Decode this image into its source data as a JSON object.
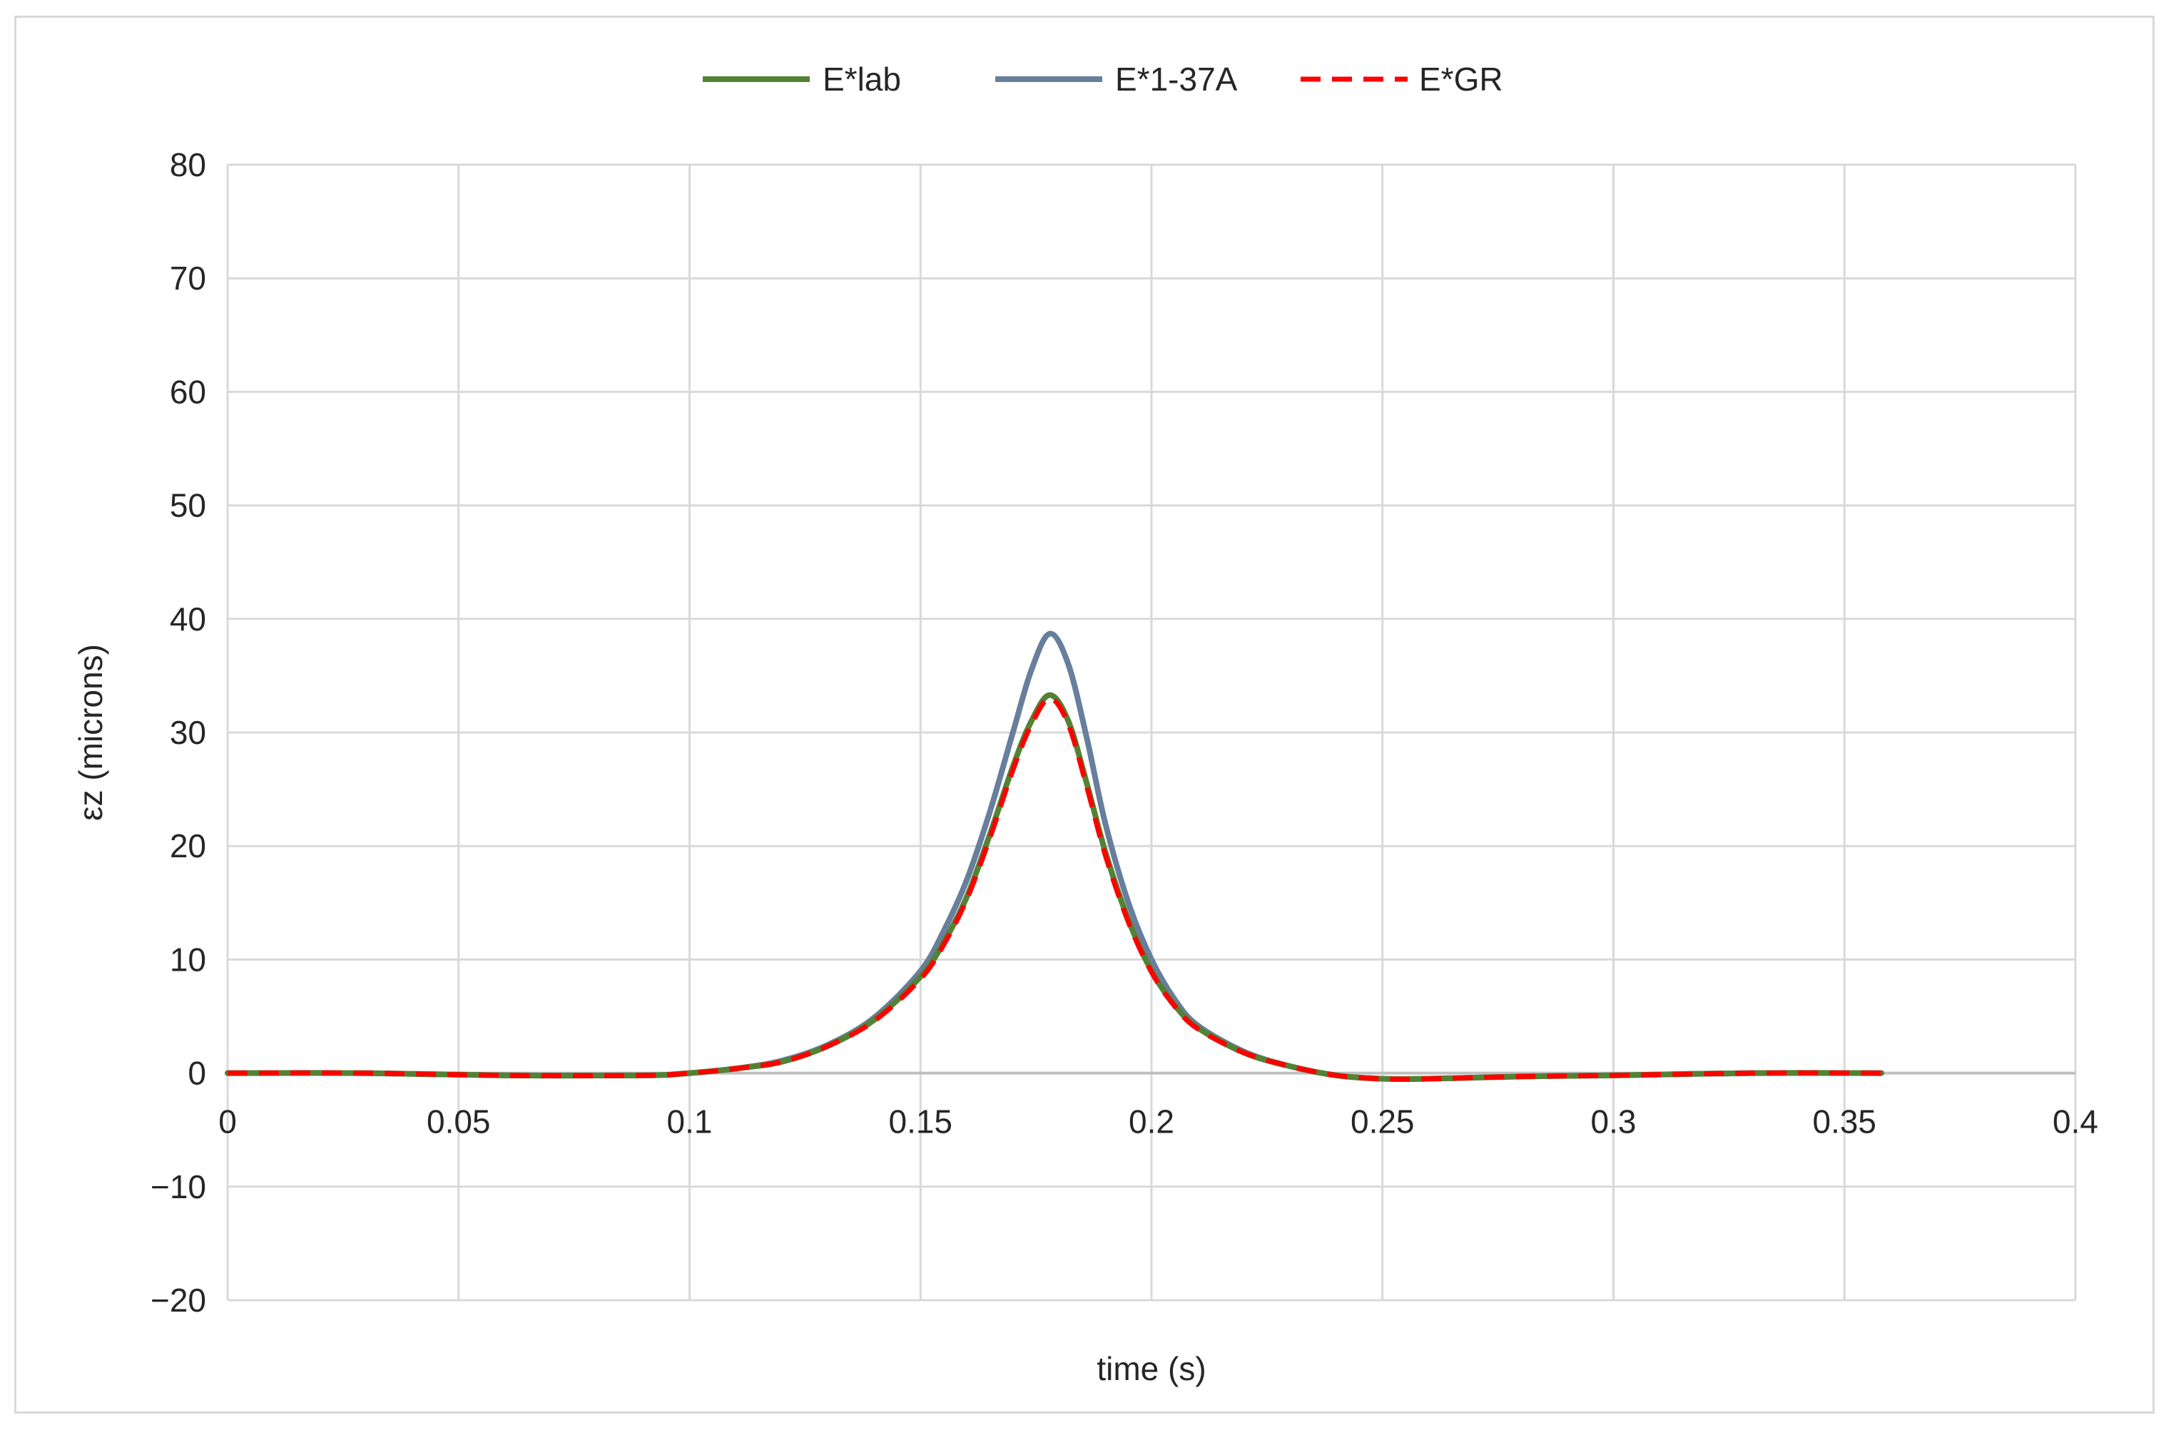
{
  "chart_data": {
    "type": "line",
    "title": "",
    "xlabel": "time (s)",
    "ylabel": "εz (microns)",
    "xlim": [
      0,
      0.4
    ],
    "ylim": [
      -20,
      80
    ],
    "x_ticks": [
      0,
      0.05,
      0.1,
      0.15,
      0.2,
      0.25,
      0.3,
      0.35,
      0.4
    ],
    "x_tick_labels": [
      "0",
      "0.05",
      "0.1",
      "0.15",
      "0.2",
      "0.25",
      "0.3",
      "0.35",
      "0.4"
    ],
    "y_ticks": [
      80,
      70,
      60,
      50,
      40,
      30,
      20,
      10,
      0,
      -10,
      -20
    ],
    "y_tick_labels": [
      "80",
      "70",
      "60",
      "50",
      "40",
      "30",
      "20",
      "10",
      "0",
      "−10",
      "−20"
    ],
    "grid": true,
    "legend_position": "top",
    "series": [
      {
        "name": "E*lab",
        "color": "#548235",
        "style": "solid",
        "x": [
          0,
          0.03,
          0.06,
          0.09,
          0.1,
          0.11,
          0.12,
          0.13,
          0.14,
          0.15,
          0.155,
          0.16,
          0.165,
          0.17,
          0.174,
          0.178,
          0.182,
          0.186,
          0.19,
          0.195,
          0.2,
          0.205,
          0.21,
          0.22,
          0.23,
          0.24,
          0.25,
          0.26,
          0.28,
          0.3,
          0.33,
          0.358
        ],
        "y": [
          0,
          0,
          -0.2,
          -0.2,
          0,
          0.4,
          1.0,
          2.4,
          4.7,
          8.5,
          11.5,
          15.5,
          21.0,
          27.0,
          31.0,
          33.3,
          31.0,
          25.5,
          19.5,
          13.5,
          9.0,
          6.0,
          4.0,
          1.8,
          0.6,
          -0.2,
          -0.5,
          -0.5,
          -0.3,
          -0.2,
          0,
          0
        ]
      },
      {
        "name": "E*1-37A",
        "color": "#677F9C",
        "style": "solid",
        "x": [
          0,
          0.03,
          0.06,
          0.09,
          0.1,
          0.11,
          0.12,
          0.13,
          0.14,
          0.15,
          0.155,
          0.16,
          0.165,
          0.17,
          0.174,
          0.178,
          0.182,
          0.186,
          0.19,
          0.195,
          0.2,
          0.205,
          0.21,
          0.22,
          0.23,
          0.24,
          0.25,
          0.26,
          0.28,
          0.3,
          0.33,
          0.358
        ],
        "y": [
          0,
          0,
          -0.2,
          -0.2,
          0,
          0.4,
          1.1,
          2.5,
          4.9,
          9.0,
          12.5,
          17.0,
          23.0,
          30.0,
          35.5,
          38.7,
          36.0,
          29.5,
          22.0,
          15.0,
          10.0,
          6.5,
          4.2,
          1.9,
          0.6,
          -0.2,
          -0.5,
          -0.5,
          -0.3,
          -0.2,
          0,
          0
        ]
      },
      {
        "name": "E*GR",
        "color": "#FF0000",
        "style": "dashed",
        "x": [
          0,
          0.03,
          0.06,
          0.09,
          0.1,
          0.11,
          0.12,
          0.13,
          0.14,
          0.15,
          0.155,
          0.16,
          0.165,
          0.17,
          0.174,
          0.178,
          0.182,
          0.186,
          0.19,
          0.195,
          0.2,
          0.205,
          0.21,
          0.22,
          0.23,
          0.24,
          0.25,
          0.26,
          0.28,
          0.3,
          0.33,
          0.358
        ],
        "y": [
          0,
          0,
          -0.2,
          -0.2,
          0,
          0.4,
          1.0,
          2.4,
          4.6,
          8.3,
          11.3,
          15.3,
          20.7,
          26.7,
          30.7,
          33.0,
          30.7,
          25.2,
          19.2,
          13.3,
          8.9,
          5.9,
          3.9,
          1.8,
          0.6,
          -0.2,
          -0.5,
          -0.5,
          -0.3,
          -0.2,
          0,
          0
        ]
      }
    ]
  }
}
